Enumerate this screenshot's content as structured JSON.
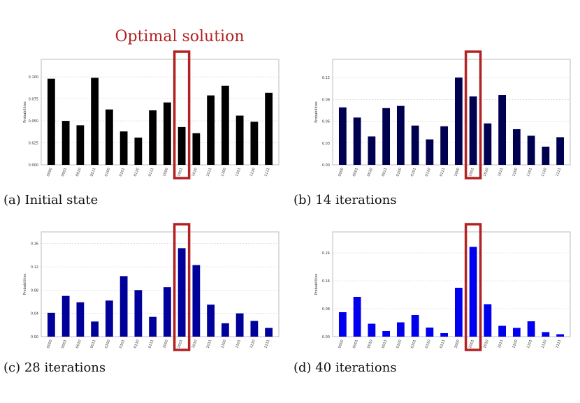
{
  "figure": {
    "heading": "Optimal solution",
    "heading_color": "#b22222",
    "highlight_color": "#b22222",
    "highlight_category": "1001"
  },
  "chart_data": [
    {
      "type": "bar",
      "caption": "(a) Initial state",
      "ylabel": "Probabilities",
      "color": "#000000",
      "categories": [
        "0000",
        "0001",
        "0010",
        "0011",
        "0100",
        "0101",
        "0110",
        "0111",
        "1000",
        "1001",
        "1010",
        "1011",
        "1100",
        "1101",
        "1110",
        "1111"
      ],
      "values": [
        0.098,
        0.05,
        0.045,
        0.099,
        0.063,
        0.038,
        0.031,
        0.062,
        0.071,
        0.043,
        0.036,
        0.079,
        0.09,
        0.056,
        0.049,
        0.082
      ],
      "yticks": [
        0.0,
        0.025,
        0.05,
        0.075,
        0.1
      ],
      "ytick_labels": [
        "0.000",
        "0.025",
        "0.050",
        "0.075",
        "0.100"
      ],
      "ylim": [
        0,
        0.12
      ]
    },
    {
      "type": "bar",
      "caption": "(b) 14 iterations",
      "ylabel": "Probabilities",
      "color": "#000050",
      "categories": [
        "0000",
        "0001",
        "0010",
        "0011",
        "0100",
        "0101",
        "0110",
        "0111",
        "1000",
        "1001",
        "1010",
        "1011",
        "1100",
        "1101",
        "1110",
        "1111"
      ],
      "values": [
        0.079,
        0.065,
        0.039,
        0.078,
        0.081,
        0.054,
        0.035,
        0.053,
        0.12,
        0.094,
        0.057,
        0.096,
        0.049,
        0.04,
        0.025,
        0.038
      ],
      "yticks": [
        0.0,
        0.03,
        0.06,
        0.09,
        0.12
      ],
      "ytick_labels": [
        "0.00",
        "0.03",
        "0.06",
        "0.09",
        "0.12"
      ],
      "ylim": [
        0,
        0.145
      ]
    },
    {
      "type": "bar",
      "caption": "(c) 28 iterations",
      "ylabel": "Probabilities",
      "color": "#00009a",
      "categories": [
        "0000",
        "0001",
        "0010",
        "0011",
        "0100",
        "0101",
        "0110",
        "0111",
        "1000",
        "1001",
        "1010",
        "1011",
        "1100",
        "1101",
        "1110",
        "1111"
      ],
      "values": [
        0.041,
        0.07,
        0.059,
        0.026,
        0.062,
        0.104,
        0.08,
        0.034,
        0.085,
        0.152,
        0.123,
        0.055,
        0.023,
        0.04,
        0.027,
        0.015
      ],
      "yticks": [
        0.0,
        0.04,
        0.08,
        0.12,
        0.16
      ],
      "ytick_labels": [
        "0.00",
        "0.04",
        "0.08",
        "0.12",
        "0.16"
      ],
      "ylim": [
        0,
        0.18
      ]
    },
    {
      "type": "bar",
      "caption": "(d) 40 iterations",
      "ylabel": "Probabilities",
      "color": "#0000ee",
      "categories": [
        "0000",
        "0001",
        "0010",
        "0011",
        "0100",
        "0101",
        "0110",
        "0111",
        "1000",
        "1001",
        "1010",
        "1011",
        "1100",
        "1101",
        "1110",
        "1111"
      ],
      "values": [
        0.07,
        0.114,
        0.037,
        0.016,
        0.041,
        0.062,
        0.026,
        0.01,
        0.14,
        0.257,
        0.093,
        0.031,
        0.025,
        0.044,
        0.013,
        0.007
      ],
      "yticks": [
        0.0,
        0.08,
        0.16,
        0.24
      ],
      "ytick_labels": [
        "0.00",
        "0.08",
        "0.16",
        "0.24"
      ],
      "ylim": [
        0,
        0.3
      ]
    }
  ]
}
